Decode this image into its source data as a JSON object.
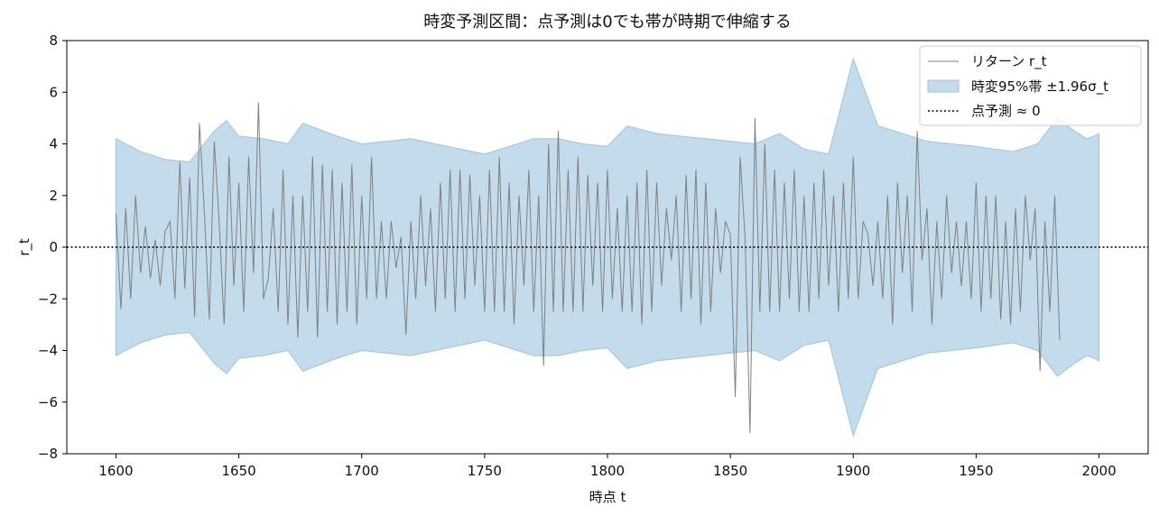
{
  "chart_data": {
    "type": "line",
    "title": "時変予測区間：点予測は0でも帯が時期で伸縮する",
    "xlabel": "時点 t",
    "ylabel": "r_t",
    "xlim": [
      1580,
      2020
    ],
    "ylim": [
      -8,
      8
    ],
    "xticks": [
      1600,
      1650,
      1700,
      1750,
      1800,
      1850,
      1900,
      1950,
      2000
    ],
    "yticks": [
      -8,
      -6,
      -4,
      -2,
      0,
      2,
      4,
      6,
      8
    ],
    "ytick_labels": [
      "−8",
      "−6",
      "−4",
      "−2",
      "0",
      "2",
      "4",
      "6",
      "8"
    ],
    "grid": false,
    "legend_position": "top-right",
    "colors": {
      "returns": "#808080",
      "band_fill": "#c4dbec",
      "band_edge": "#9dc3de",
      "zero": "#000000"
    },
    "series": [
      {
        "name": "リターン r_t",
        "kind": "line",
        "x_start": 1600,
        "x_step": 2,
        "values": [
          1.3,
          -2.4,
          1.5,
          -2.0,
          2.0,
          -1.0,
          0.8,
          -1.2,
          0.3,
          -1.5,
          0.6,
          1.0,
          -2.0,
          3.3,
          -1.6,
          2.7,
          -2.7,
          4.8,
          1.3,
          -2.8,
          4.1,
          1.0,
          -3.0,
          3.5,
          -1.5,
          2.5,
          -2.5,
          3.5,
          -1.0,
          5.6,
          -2.0,
          -1.2,
          1.5,
          -2.5,
          3.0,
          -3.0,
          2.0,
          -3.5,
          2.0,
          -2.5,
          3.5,
          -3.5,
          3.2,
          -2.5,
          3.0,
          -3.0,
          2.5,
          -2.5,
          3.2,
          -3.0,
          2.0,
          -2.0,
          3.5,
          -2.0,
          1.0,
          -2.0,
          1.0,
          -0.8,
          0.4,
          -3.4,
          1.0,
          -2.0,
          2.0,
          -1.5,
          1.5,
          -2.5,
          2.5,
          -2.0,
          3.0,
          -2.5,
          3.0,
          -2.0,
          2.8,
          -1.5,
          2.0,
          -2.5,
          3.0,
          -2.5,
          3.5,
          -2.5,
          2.5,
          -3.0,
          2.0,
          -1.5,
          3.0,
          -2.5,
          2.0,
          -4.6,
          4.0,
          -2.5,
          4.5,
          -2.5,
          3.0,
          -2.5,
          3.5,
          -2.5,
          2.8,
          -1.5,
          2.5,
          -2.5,
          3.0,
          -2.0,
          1.5,
          -2.5,
          2.0,
          -2.5,
          2.5,
          -3.0,
          3.0,
          -2.5,
          2.5,
          -1.5,
          1.5,
          -0.5,
          2.0,
          -2.5,
          2.8,
          -2.0,
          3.0,
          -3.0,
          2.5,
          -2.5,
          1.5,
          -1.0,
          1.0,
          0.5,
          -5.8,
          3.5,
          0.3,
          -7.2,
          5.0,
          -2.5,
          4.0,
          -2.5,
          3.0,
          -2.5,
          2.5,
          -2.0,
          3.0,
          -2.5,
          2.0,
          -2.5,
          2.5,
          -2.0,
          3.0,
          -1.5,
          2.0,
          -2.5,
          2.5,
          -2.0,
          3.5,
          -2.0,
          1.0,
          0.5,
          -1.5,
          1.0,
          -2.0,
          2.0,
          -3.0,
          2.5,
          -1.0,
          2.0,
          -2.5,
          4.5,
          -0.5,
          1.5,
          -3.0,
          1.0,
          -2.0,
          2.0,
          -1.0,
          1.0,
          -1.5,
          1.0,
          -2.0,
          2.5,
          -2.5,
          2.0,
          -2.0,
          2.0,
          -2.8,
          1.0,
          -3.0,
          1.5,
          -2.5,
          2.0,
          -0.5,
          1.5,
          -4.8,
          1.0,
          -2.5,
          2.0,
          -3.6
        ]
      },
      {
        "name": "時変95%帯 ±1.96σ_t",
        "kind": "band",
        "x": [
          1600,
          1610,
          1620,
          1630,
          1640,
          1645,
          1650,
          1660,
          1670,
          1676,
          1690,
          1700,
          1720,
          1740,
          1750,
          1760,
          1770,
          1780,
          1790,
          1800,
          1808,
          1820,
          1840,
          1860,
          1870,
          1880,
          1890,
          1900,
          1910,
          1930,
          1950,
          1965,
          1975,
          1983,
          1990,
          1995,
          1998,
          2000
        ],
        "upper": [
          4.2,
          3.7,
          3.4,
          3.3,
          4.5,
          4.9,
          4.3,
          4.2,
          4.0,
          4.8,
          4.3,
          4.0,
          4.2,
          3.8,
          3.6,
          3.9,
          4.2,
          4.2,
          4.0,
          3.9,
          4.7,
          4.4,
          4.2,
          4.0,
          4.4,
          3.8,
          3.6,
          7.3,
          4.7,
          4.1,
          3.9,
          3.7,
          4.0,
          5.0,
          4.5,
          4.2,
          4.3,
          4.4
        ],
        "lower": [
          -4.2,
          -3.7,
          -3.4,
          -3.3,
          -4.5,
          -4.9,
          -4.3,
          -4.2,
          -4.0,
          -4.8,
          -4.3,
          -4.0,
          -4.2,
          -3.8,
          -3.6,
          -3.9,
          -4.2,
          -4.2,
          -4.0,
          -3.9,
          -4.7,
          -4.4,
          -4.2,
          -4.0,
          -4.4,
          -3.8,
          -3.6,
          -7.3,
          -4.7,
          -4.1,
          -3.9,
          -3.7,
          -4.0,
          -5.0,
          -4.5,
          -4.2,
          -4.3,
          -4.4
        ]
      },
      {
        "name": "点予測 ≈ 0",
        "kind": "hline",
        "y": 0
      }
    ]
  }
}
